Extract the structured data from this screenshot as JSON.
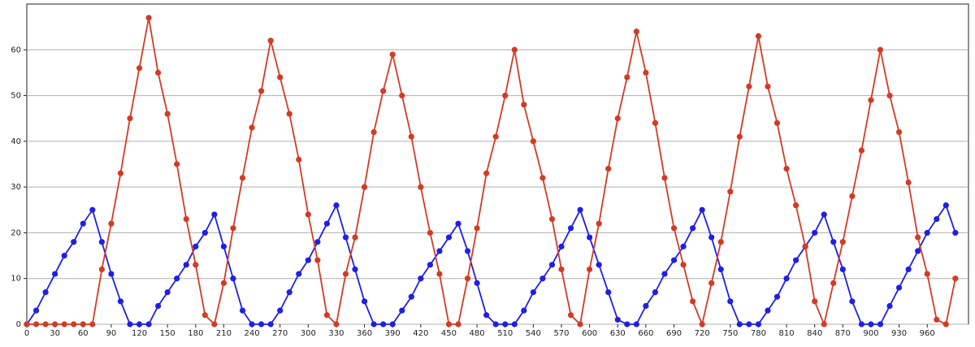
{
  "chart_data": {
    "type": "line",
    "x": [
      0,
      10,
      20,
      30,
      40,
      50,
      60,
      70,
      80,
      90,
      100,
      110,
      120,
      130,
      140,
      150,
      160,
      170,
      180,
      190,
      200,
      210,
      220,
      230,
      240,
      250,
      260,
      270,
      280,
      290,
      300,
      310,
      320,
      330,
      340,
      350,
      360,
      370,
      380,
      390,
      400,
      410,
      420,
      430,
      440,
      450,
      460,
      470,
      480,
      490,
      500,
      510,
      520,
      530,
      540,
      550,
      560,
      570,
      580,
      590,
      600,
      610,
      620,
      630,
      640,
      650,
      660,
      670,
      680,
      690,
      700,
      710,
      720,
      730,
      740,
      750,
      760,
      770,
      780,
      790,
      800,
      810,
      820,
      830,
      840,
      850,
      860,
      870,
      880,
      890,
      900,
      910,
      920,
      930,
      940,
      950,
      960,
      970,
      980,
      990
    ],
    "series": [
      {
        "color": "#1f1fe6",
        "values": [
          0,
          3,
          7,
          11,
          15,
          18,
          22,
          25,
          18,
          11,
          5,
          0,
          0,
          0,
          4,
          7,
          10,
          13,
          17,
          20,
          24,
          17,
          10,
          3,
          0,
          0,
          0,
          3,
          7,
          11,
          14,
          18,
          22,
          26,
          19,
          12,
          5,
          0,
          0,
          0,
          3,
          6,
          10,
          13,
          16,
          19,
          22,
          16,
          9,
          2,
          0,
          0,
          0,
          3,
          7,
          10,
          13,
          17,
          21,
          25,
          19,
          13,
          7,
          1,
          0,
          0,
          4,
          7,
          11,
          14,
          17,
          21,
          25,
          19,
          12,
          5,
          0,
          0,
          0,
          3,
          6,
          10,
          14,
          17,
          20,
          24,
          18,
          12,
          5,
          0,
          0,
          0,
          4,
          8,
          12,
          16,
          20,
          23,
          26,
          20
        ]
      },
      {
        "color": "#d23b24",
        "values": [
          0,
          0,
          0,
          0,
          0,
          0,
          0,
          0,
          12,
          22,
          33,
          45,
          56,
          67,
          55,
          46,
          35,
          23,
          13,
          2,
          0,
          9,
          21,
          32,
          43,
          51,
          62,
          54,
          46,
          36,
          24,
          14,
          2,
          0,
          11,
          19,
          30,
          42,
          51,
          59,
          50,
          41,
          30,
          20,
          11,
          0,
          0,
          10,
          21,
          33,
          41,
          50,
          60,
          48,
          40,
          32,
          23,
          12,
          2,
          0,
          12,
          22,
          34,
          45,
          54,
          64,
          55,
          44,
          32,
          21,
          13,
          5,
          0,
          9,
          18,
          29,
          41,
          52,
          63,
          52,
          44,
          34,
          26,
          17,
          5,
          0,
          9,
          18,
          28,
          38,
          49,
          60,
          50,
          42,
          31,
          19,
          11,
          1,
          0,
          10
        ]
      }
    ],
    "xlim": [
      0,
      1004
    ],
    "ylim": [
      0,
      70
    ],
    "xticks": [
      0,
      30,
      60,
      90,
      120,
      150,
      180,
      210,
      240,
      270,
      300,
      330,
      360,
      390,
      420,
      450,
      480,
      510,
      540,
      570,
      600,
      630,
      660,
      690,
      720,
      750,
      780,
      810,
      840,
      870,
      900,
      930,
      960
    ],
    "yticks": [
      0,
      10,
      20,
      30,
      40,
      50,
      60
    ],
    "grid": true
  }
}
